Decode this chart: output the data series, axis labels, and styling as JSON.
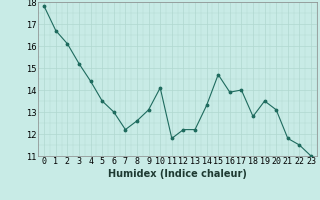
{
  "x": [
    0,
    1,
    2,
    3,
    4,
    5,
    6,
    7,
    8,
    9,
    10,
    11,
    12,
    13,
    14,
    15,
    16,
    17,
    18,
    19,
    20,
    21,
    22,
    23
  ],
  "y": [
    17.8,
    16.7,
    16.1,
    15.2,
    14.4,
    13.5,
    13.0,
    12.2,
    12.6,
    13.1,
    14.1,
    11.8,
    12.2,
    12.2,
    13.3,
    14.7,
    13.9,
    14.0,
    12.8,
    13.5,
    13.1,
    11.8,
    11.5,
    11.0
  ],
  "xlabel": "Humidex (Indice chaleur)",
  "ylim": [
    11,
    18
  ],
  "xlim": [
    -0.5,
    23.5
  ],
  "bg_color": "#c8ebe6",
  "line_color": "#1e6b5e",
  "grid_color_major": "#b0d8d0",
  "grid_color_minor": "#b0d8d0",
  "xlabel_fontsize": 7,
  "tick_fontsize": 6
}
